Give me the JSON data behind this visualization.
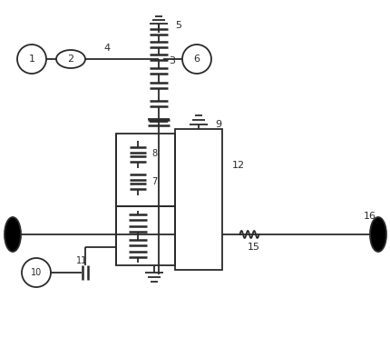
{
  "bg_color": "#ffffff",
  "line_color": "#2a2a2a",
  "figsize": [
    4.31,
    3.94
  ],
  "dpi": 100
}
